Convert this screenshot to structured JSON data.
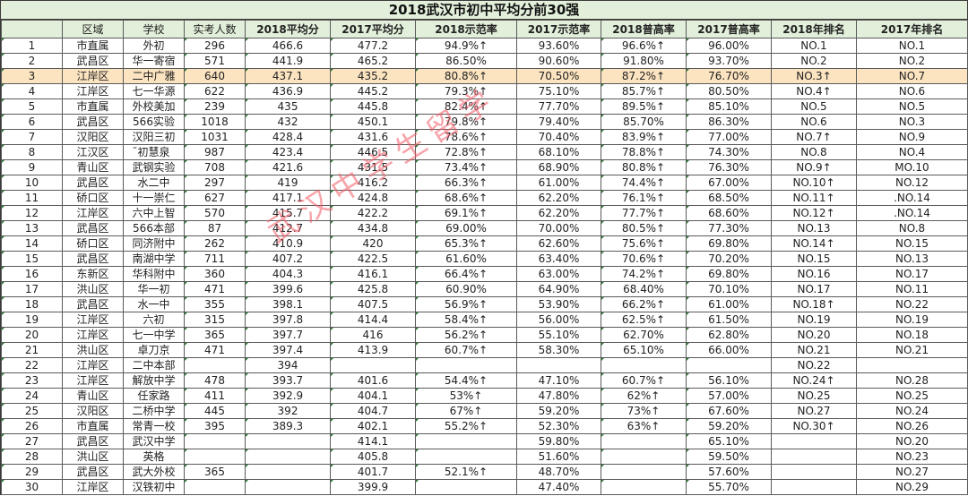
{
  "title": "2018武汉市初中平均分前30强",
  "headers": [
    "",
    "区域",
    "学校",
    "实考人数",
    "2018平均分",
    "2017平均分",
    "2018示范率",
    "2017示范率",
    "2018普高率",
    "2017普高率",
    "2018年排名",
    "2017年排名"
  ],
  "highlight_row_index": 2,
  "colors": {
    "title_bg": "#e2efda",
    "header_bg": "#e2efda",
    "highlight_bg": "#fce4c0",
    "watermark": "#f05a64",
    "cell_flag": "#2e7d32"
  },
  "watermark": "武汉中学生留学",
  "rows": [
    [
      "1",
      "市直属",
      "外初",
      "296",
      "466.6",
      "477.2",
      "94.9%↑",
      "93.60%",
      "96.6%↑",
      "96.00%",
      "NO.1",
      "NO.1"
    ],
    [
      "2",
      "武昌区",
      "华一寄宿",
      "571",
      "441.9",
      "465.2",
      "86.50%",
      "90.60%",
      "91.80%",
      "93.70%",
      "NO.2",
      "NO.2"
    ],
    [
      "3",
      "江岸区",
      "二中广雅",
      "640",
      "437.1",
      "435.2",
      "80.8%↑",
      "70.50%",
      "87.2%↑",
      "76.70%",
      "NO.3↑",
      "NO.7"
    ],
    [
      "4",
      "江岸区",
      "七一华源",
      "622",
      "436.9",
      "445.2",
      "79.3%↑",
      "75.10%",
      "85.7%↑",
      "80.50%",
      "NO.4↑",
      "NO.6"
    ],
    [
      "5",
      "市直属",
      "外校美加",
      "239",
      "435",
      "445.8",
      "82.4%↑",
      "77.70%",
      "89.5%↑",
      "85.10%",
      "NO.5",
      "NO.5"
    ],
    [
      "6",
      "武昌区",
      "566实验",
      "1018",
      "432",
      "450.1",
      "79.8%↑",
      "79.40%",
      "85.70%",
      "86.30%",
      "NO.6",
      "NO.3"
    ],
    [
      "7",
      "汉阳区",
      "汉阳三初",
      "1031",
      "428.4",
      "431.6",
      "78.6%↑",
      "70.40%",
      "83.9%↑",
      "77.00%",
      "NO.7↑",
      "NO.9"
    ],
    [
      "8",
      "江汉区",
      "̄初慧泉",
      "987",
      "423.4",
      "446.5",
      "72.8%↑",
      "68.10%",
      "78.8%↑",
      "74.30%",
      "NO.8",
      "NO.4"
    ],
    [
      "9",
      "青山区",
      "武钢实验",
      "708",
      "421.6",
      "431.5",
      "73.4%↑",
      "68.90%",
      "80.8%↑",
      "76.30%",
      "NO.9↑",
      "MO.10"
    ],
    [
      "10",
      "武昌区",
      "水二中",
      "297",
      "419",
      "416.2",
      "66.3%↑",
      "61.00%",
      "74.4%↑",
      "67.00%",
      "NO.10↑",
      "NO.12"
    ],
    [
      "11",
      "硚口区",
      "十一崇仁",
      "627",
      "417.1",
      "424.8",
      "68.6%↑",
      "62.20%",
      "76.1%↑",
      "68.50%",
      "NO.11↑",
      ".NO.14"
    ],
    [
      "12",
      "江岸区",
      "六中上智",
      "570",
      "415.7",
      "422.2",
      "69.1%↑",
      "62.20%",
      "77.7%↑",
      "68.60%",
      "NO.12↑",
      ".NO.14"
    ],
    [
      "13",
      "武昌区",
      "566本部",
      "87",
      "412.7",
      "434.8",
      "69.00%",
      "70.00%",
      "80.5%↑",
      "77.30%",
      "NO.13",
      "NO.8"
    ],
    [
      "14",
      "硚口区",
      "同济附中",
      "262",
      "410.9",
      "420",
      "65.3%↑",
      "62.60%",
      "75.6%↑",
      "69.80%",
      "NO.14↑",
      "NO.15"
    ],
    [
      "15",
      "武昌区",
      "南湖中学",
      "711",
      "407.2",
      "422.5",
      "61.60%",
      "63.40%",
      "70.6%↑",
      "70.20%",
      "NO.15",
      "NO.13"
    ],
    [
      "16",
      "东新区",
      "华科附中",
      "360",
      "404.3",
      "416.1",
      "66.4%↑",
      "63.00%",
      "74.2%↑",
      "69.80%",
      "NO.16",
      "NO.17"
    ],
    [
      "17",
      "洪山区",
      "华一初",
      "471",
      "399.6",
      "425.8",
      "60.90%",
      "64.90%",
      "68.40%",
      "70.10%",
      "NO.17",
      "NO.11"
    ],
    [
      "18",
      "武昌区",
      "水一中",
      "355",
      "398.1",
      "407.5",
      "56.9%↑",
      "53.90%",
      "66.2%↑",
      "61.00%",
      "NO.18↑",
      "NO.22"
    ],
    [
      "19",
      "江岸区",
      "六初",
      "315",
      "397.8",
      "414.4",
      "58.4%↑",
      "56.00%",
      "62.5%↑",
      "61.50%",
      "NO.19",
      "NO.19"
    ],
    [
      "20",
      "江岸区",
      "七一中学",
      "365",
      "397.7",
      "416",
      "56.2%↑",
      "55.10%",
      "62.70%",
      "62.80%",
      "NO.20",
      "NO.18"
    ],
    [
      "21",
      "洪山区",
      "卓刀京",
      "471",
      "397.4",
      "413.9",
      "60.7%↑",
      "58.30%",
      "65.10%",
      "66.00%",
      "NO.21",
      "NO.21"
    ],
    [
      "22",
      "江岸区",
      "二中本部",
      "",
      "394",
      "",
      "",
      "",
      "",
      "",
      "NO.22",
      ""
    ],
    [
      "23",
      "江岸区",
      "解放中学",
      "478",
      "393.7",
      "401.6",
      "54.4%↑",
      "47.10%",
      "60.7%↑",
      "56.10%",
      "NO.24↑",
      "NO.28"
    ],
    [
      "24",
      "青山区",
      "任家路",
      "411",
      "392.9",
      "404.1",
      "53%↑",
      "47.80%",
      "62%↑",
      "57.00%",
      "NO.25",
      "NO.25"
    ],
    [
      "25",
      "汉阳区",
      "二桥中学",
      "445",
      "392",
      "404.7",
      "67%↑",
      "59.20%",
      "73%↑",
      "67.60%",
      "NO.27",
      "NO.24"
    ],
    [
      "26",
      "市直属",
      "常青一校",
      "395",
      "389.3",
      "402.1",
      "55.2%↑",
      "52.30%",
      "63%↑",
      "59.20%",
      "NO.30↑",
      "NO.26"
    ],
    [
      "27",
      "武昌区",
      "武汉中学",
      "",
      "",
      "414.1",
      "",
      "59.80%",
      "",
      "65.10%",
      "",
      "NO.20"
    ],
    [
      "28",
      "洪山区",
      "英格",
      "",
      "",
      "405.8",
      "",
      "51.60%",
      "",
      "59.50%",
      "",
      "NO.23"
    ],
    [
      "29",
      "武昌区",
      "武大外校",
      "365",
      "",
      "401.7",
      "52.1%↑",
      "48.70%",
      "",
      "57.60%",
      "",
      "NO.27"
    ],
    [
      "30",
      "江岸区",
      "汉铁初中",
      "",
      "",
      "399.9",
      "",
      "47.40%",
      "",
      "55.70%",
      "",
      "NO.29"
    ]
  ]
}
